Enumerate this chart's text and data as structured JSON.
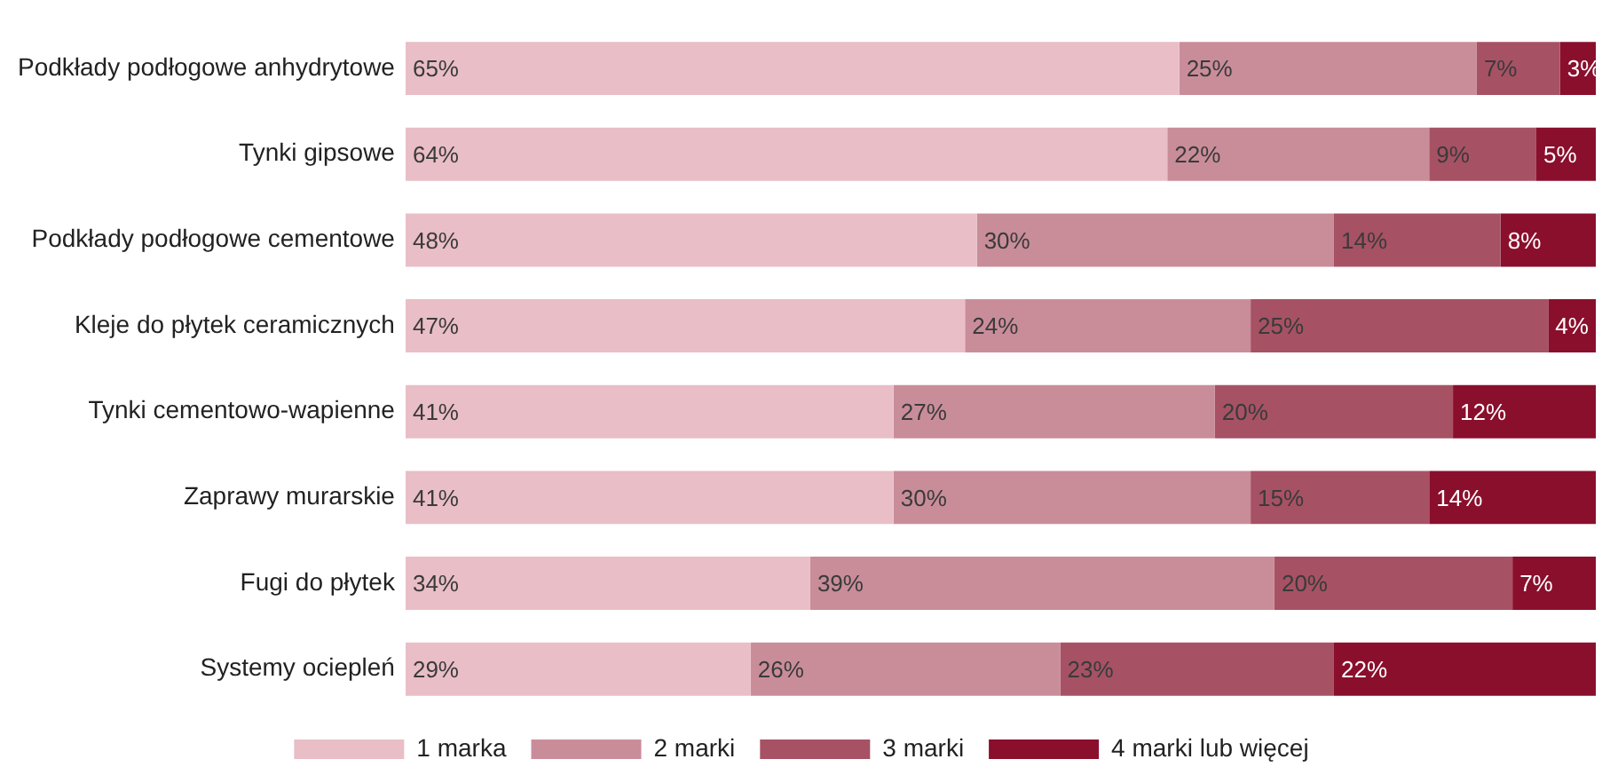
{
  "chart_data": {
    "type": "bar",
    "orientation": "horizontal",
    "stacked": true,
    "legend": "bottom",
    "grid": false,
    "tick_labels": "y",
    "categories": [
      "Podkłady podłogowe anhydrytowe",
      "Tynki gipsowe",
      "Podkłady podłogowe cementowe",
      "Kleje do płytek ceramicznych",
      "Tynki cementowo-wapienne",
      "Zaprawy murarskie",
      "Fugi do płytek",
      "Systemy ociepleń"
    ],
    "series": [
      {
        "name": "1 marka",
        "color": "#e9bec7",
        "values": [
          65,
          64,
          48,
          47,
          41,
          41,
          34,
          29
        ],
        "value_labels": [
          "65%",
          "64%",
          "48%",
          "47%",
          "41%",
          "41%",
          "34%",
          "29%"
        ]
      },
      {
        "name": "2 marki",
        "color": "#c98d9a",
        "values": [
          25,
          22,
          30,
          24,
          27,
          30,
          39,
          26
        ],
        "value_labels": [
          "25%",
          "22%",
          "30%",
          "24%",
          "27%",
          "30%",
          "39%",
          "26%"
        ]
      },
      {
        "name": "3 marki",
        "color": "#a65264",
        "values": [
          7,
          9,
          14,
          25,
          20,
          15,
          20,
          23
        ],
        "value_labels": [
          "7%",
          "9%",
          "14%",
          "25%",
          "20%",
          "15%",
          "20%",
          "23%"
        ]
      },
      {
        "name": "4 marki lub więcej",
        "color": "#8a0f2c",
        "values": [
          3,
          5,
          8,
          4,
          12,
          14,
          7,
          22
        ],
        "value_labels": [
          "3%",
          "5%",
          "8%",
          "4%",
          "12%",
          "14%",
          "7%",
          "22%"
        ]
      }
    ]
  }
}
